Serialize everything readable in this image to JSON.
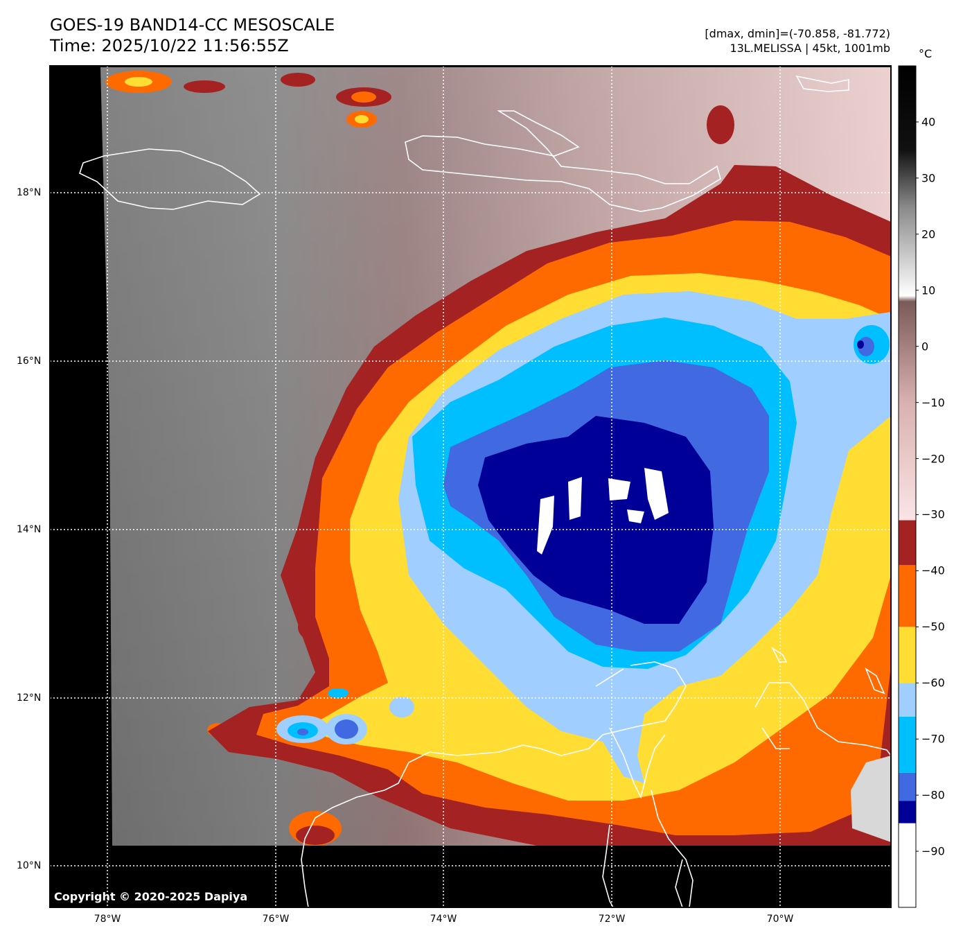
{
  "header": {
    "title_line1": "GOES-19 BAND14-CC MESOSCALE",
    "title_line2": "Time: 2025/10/22 11:56:55Z",
    "stats_line": "[dmax, dmin]=(-70.858, -81.772)",
    "storm_line": "13L.MELISSA | 45kt, 1001mb"
  },
  "map": {
    "lat_labels": [
      "18°N",
      "16°N",
      "14°N",
      "12°N",
      "10°N"
    ],
    "lon_labels": [
      "78°W",
      "76°W",
      "74°W",
      "72°W",
      "70°W"
    ]
  },
  "colorbar": {
    "unit": "°C",
    "ticks": [
      "40",
      "30",
      "20",
      "10",
      "0",
      "−10",
      "−20",
      "−30",
      "−40",
      "−50",
      "−60",
      "−70",
      "−80",
      "−90"
    ],
    "range": [
      -100,
      50
    ],
    "bands": [
      {
        "from": -100,
        "to": -85,
        "color": "#ffffff"
      },
      {
        "from": -85,
        "to": -81,
        "color": "#000099"
      },
      {
        "from": -81,
        "to": -76,
        "color": "#4169e1"
      },
      {
        "from": -76,
        "to": -66,
        "color": "#00bfff"
      },
      {
        "from": -66,
        "to": -60,
        "color": "#a0cfff"
      },
      {
        "from": -60,
        "to": -50,
        "color": "#ffdd33"
      },
      {
        "from": -50,
        "to": -39,
        "color": "#ff6a00"
      },
      {
        "from": -39,
        "to": -31,
        "color": "#a52222"
      }
    ],
    "gradient_stops": [
      {
        "value": -31,
        "color": "#fbe4e6"
      },
      {
        "value": -10,
        "color": "#d9b1b0"
      },
      {
        "value": 8,
        "color": "#7a5a58"
      },
      {
        "value": 9,
        "color": "#ffffff"
      },
      {
        "value": 25,
        "color": "#888888"
      },
      {
        "value": 35,
        "color": "#111111"
      },
      {
        "value": 50,
        "color": "#000000"
      }
    ]
  },
  "copyright": "Copyright © 2020-2025 Dapiya"
}
